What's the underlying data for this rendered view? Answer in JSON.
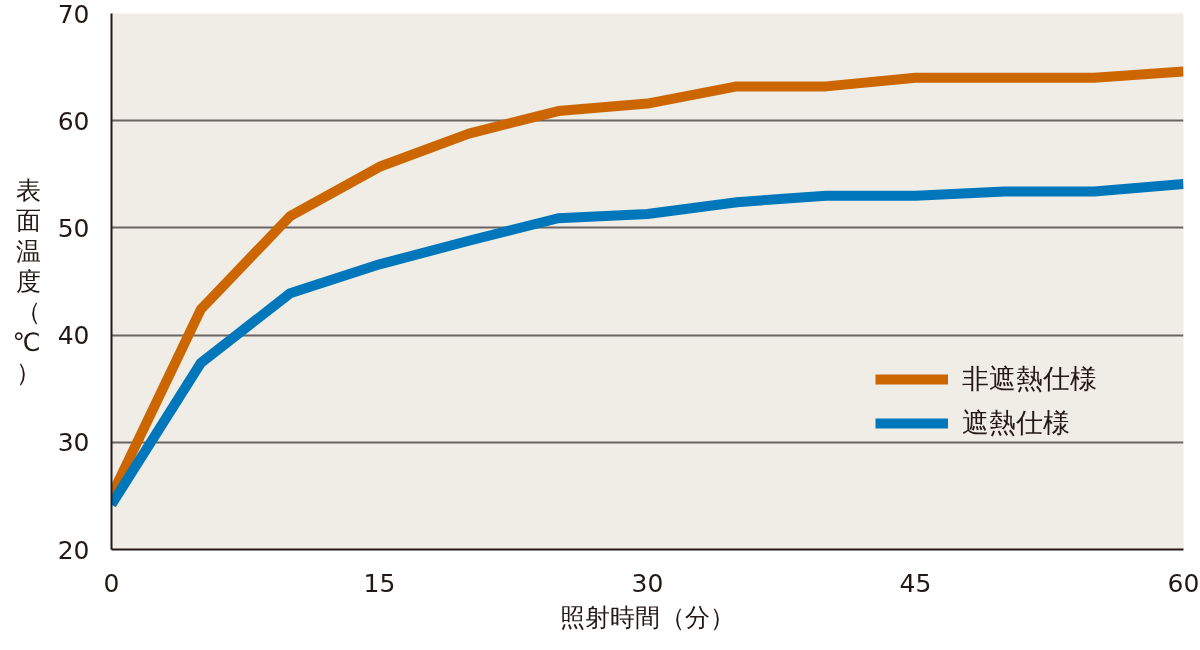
{
  "chart_data": {
    "type": "line",
    "xlabel": "照射時間（分）",
    "ylabel": "表面温度（℃）",
    "x": [
      0,
      5,
      10,
      15,
      20,
      25,
      30,
      35,
      40,
      45,
      50,
      55,
      60
    ],
    "xlim": [
      0,
      60
    ],
    "xticks": [
      0,
      15,
      30,
      45,
      60
    ],
    "ylim": [
      20,
      70
    ],
    "yticks": [
      20,
      30,
      40,
      50,
      60,
      70
    ],
    "grid": "y",
    "legend": "right",
    "line_style": "solid",
    "series": [
      {
        "name": "非遮熱仕様",
        "color": "#cc6600",
        "values": [
          25.0,
          42.4,
          51.1,
          55.7,
          58.8,
          60.9,
          61.6,
          63.2,
          63.2,
          64.0,
          64.0,
          64.0,
          64.6
        ]
      },
      {
        "name": "遮熱仕様",
        "color": "#0077bb",
        "values": [
          24.2,
          37.4,
          43.9,
          46.6,
          48.8,
          50.9,
          51.3,
          52.4,
          53.0,
          53.0,
          53.4,
          53.4,
          54.1
        ]
      }
    ]
  }
}
